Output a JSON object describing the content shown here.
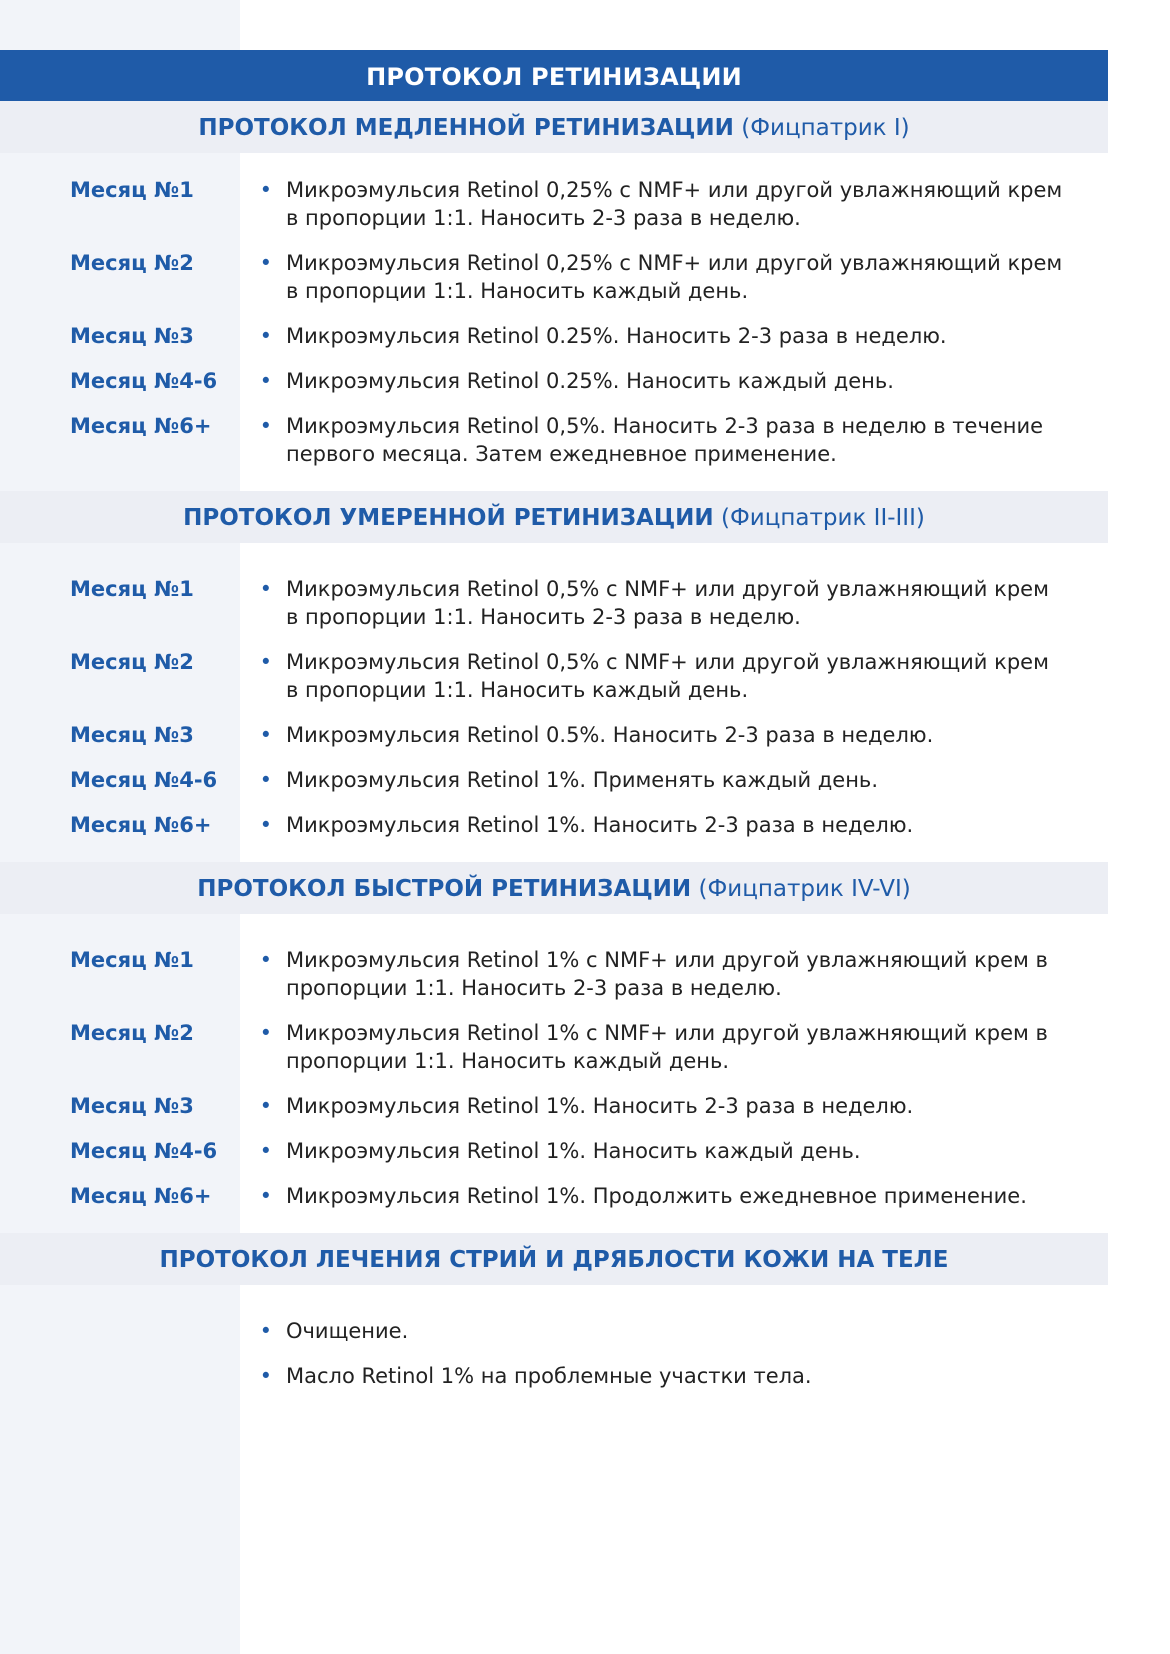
{
  "title": "ПРОТОКОЛ РЕТИНИЗАЦИИ",
  "colors": {
    "accent": "#1f5ba8",
    "band": "#eceef4",
    "sidebar": "#f2f4f9"
  },
  "sections": [
    {
      "heading": "ПРОТОКОЛ МЕДЛЕННОЙ РЕТИНИЗАЦИИ",
      "subheading": "(Фицпатрик I)",
      "rows": [
        {
          "month": "Месяц №1",
          "text": "Микроэмульсия Retinol 0,25% с NMF+ или другой увлажняющий крем в пропорции 1:1. Наносить 2-3 раза в неделю."
        },
        {
          "month": "Месяц №2",
          "text": "Микроэмульсия Retinol 0,25% с NMF+ или другой увлажняющий крем в пропорции 1:1. Наносить каждый день."
        },
        {
          "month": "Месяц №3",
          "text": "Микроэмульсия Retinol 0.25%. Наносить 2-3 раза в неделю."
        },
        {
          "month": "Месяц №4-6",
          "text": "Микроэмульсия Retinol 0.25%. Наносить каждый день."
        },
        {
          "month": "Месяц №6+",
          "text": "Микроэмульсия Retinol 0,5%. Наносить 2-3 раза в неделю в течение первого месяца. Затем ежедневное применение."
        }
      ]
    },
    {
      "heading": "ПРОТОКОЛ УМЕРЕННОЙ РЕТИНИЗАЦИИ",
      "subheading": "(Фицпатрик II-III)",
      "rows": [
        {
          "month": "Месяц №1",
          "text": "Микроэмульсия Retinol 0,5% с NMF+ или другой увлажняющий крем в пропорции 1:1. Наносить 2-3 раза в неделю."
        },
        {
          "month": "Месяц №2",
          "text": "Микроэмульсия Retinol 0,5% с NMF+ или другой увлажняющий крем в пропорции 1:1. Наносить каждый день."
        },
        {
          "month": "Месяц №3",
          "text": "Микроэмульсия Retinol 0.5%. Наносить 2-3 раза в неделю."
        },
        {
          "month": "Месяц №4-6",
          "text": "Микроэмульсия Retinol 1%. Применять каждый день."
        },
        {
          "month": "Месяц №6+",
          "text": "Микроэмульсия Retinol 1%. Наносить 2-3 раза в неделю."
        }
      ]
    },
    {
      "heading": "ПРОТОКОЛ БЫСТРОЙ РЕТИНИЗАЦИИ",
      "subheading": "(Фицпатрик IV-VI)",
      "rows": [
        {
          "month": "Месяц №1",
          "text": "Микроэмульсия Retinol 1% с NMF+ или другой увлажняющий крем в пропорции 1:1. Наносить 2-3 раза в неделю."
        },
        {
          "month": "Месяц №2",
          "text": "Микроэмульсия Retinol 1% с NMF+ или другой увлажняющий крем в пропорции 1:1. Наносить каждый день."
        },
        {
          "month": "Месяц №3",
          "text": "Микроэмульсия Retinol 1%. Наносить 2-3 раза в неделю."
        },
        {
          "month": "Месяц №4-6",
          "text": "Микроэмульсия Retinol 1%. Наносить каждый день."
        },
        {
          "month": "Месяц №6+",
          "text": "Микроэмульсия Retinol 1%. Продолжить ежедневное применение."
        }
      ]
    },
    {
      "heading": "ПРОТОКОЛ ЛЕЧЕНИЯ СТРИЙ И ДРЯБЛОСТИ КОЖИ НА ТЕЛЕ",
      "subheading": "",
      "rows": [
        {
          "month": "",
          "text": "Очищение."
        },
        {
          "month": "",
          "text": "Масло Retinol 1% на проблемные участки тела."
        }
      ]
    }
  ]
}
